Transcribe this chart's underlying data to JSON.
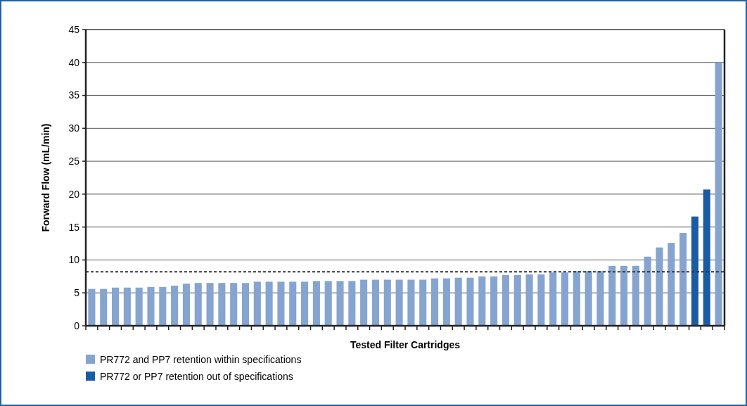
{
  "chart_data": {
    "type": "bar",
    "xlabel": "Tested Filter Cartridges",
    "ylabel": "Forward Flow (mL/min)",
    "categories": [
      null,
      null,
      null,
      null,
      null,
      null,
      null,
      null,
      null,
      null,
      null,
      null,
      null,
      null,
      null,
      null,
      null,
      null,
      null,
      null,
      null,
      null,
      null,
      null,
      null,
      null,
      null,
      null,
      null,
      null,
      null,
      null,
      null,
      null,
      null,
      null,
      null,
      null,
      null,
      null,
      null,
      null,
      null,
      null,
      null,
      null,
      null,
      null,
      null,
      null,
      null,
      null,
      null,
      null
    ],
    "series": [
      {
        "name": "PR772 and PP7 retention within specifications",
        "color": "#86a4d0",
        "values": [
          5.6,
          5.6,
          5.8,
          5.8,
          5.8,
          5.9,
          5.9,
          6.1,
          6.4,
          6.5,
          6.5,
          6.5,
          6.5,
          6.5,
          6.7,
          6.7,
          6.7,
          6.7,
          6.7,
          6.8,
          6.8,
          6.8,
          6.8,
          7.0,
          7.0,
          7.0,
          7.0,
          7.0,
          7.0,
          7.2,
          7.2,
          7.3,
          7.3,
          7.5,
          7.5,
          7.7,
          7.7,
          7.8,
          7.8,
          8.1,
          8.1,
          8.3,
          8.3,
          8.3,
          9.1,
          9.1,
          9.1,
          10.5,
          11.9,
          12.6,
          14.1,
          null,
          null,
          40
        ]
      },
      {
        "name": "PR772 or PP7 retention out of specifications",
        "color": "#1a5ca4",
        "values": [
          null,
          null,
          null,
          null,
          null,
          null,
          null,
          null,
          null,
          null,
          null,
          null,
          null,
          null,
          null,
          null,
          null,
          null,
          null,
          null,
          null,
          null,
          null,
          null,
          null,
          null,
          null,
          null,
          null,
          null,
          null,
          null,
          null,
          null,
          null,
          null,
          null,
          null,
          null,
          null,
          null,
          null,
          null,
          null,
          null,
          null,
          null,
          null,
          null,
          null,
          null,
          16.6,
          20.7,
          null
        ]
      }
    ],
    "ylim": [
      0,
      45
    ],
    "yticks": [
      0,
      5,
      10,
      15,
      20,
      25,
      30,
      35,
      40,
      45
    ],
    "grid": "y",
    "legend": "bottom",
    "ref_lines": [
      {
        "axis": "y",
        "value": 8.2,
        "line_style": "dashed",
        "color": "#333333"
      }
    ]
  }
}
